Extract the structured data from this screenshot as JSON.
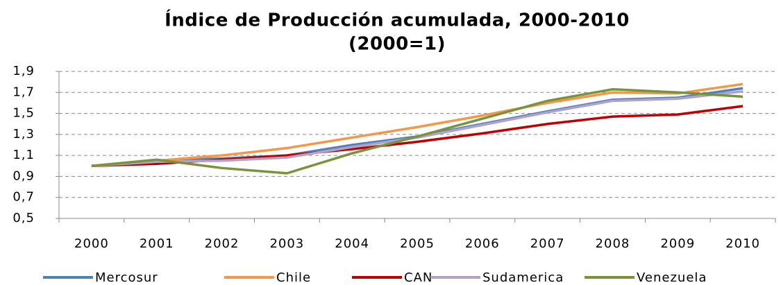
{
  "chart_data": {
    "type": "line",
    "title": "Índice de Producción acumulada, 2000-2010",
    "subtitle": "(2000=1)",
    "categories": [
      "2000",
      "2001",
      "2002",
      "2003",
      "2004",
      "2005",
      "2006",
      "2007",
      "2008",
      "2009",
      "2010"
    ],
    "series": [
      {
        "name": "Mercosur",
        "color": "#4f81bd",
        "values": [
          1.0,
          1.05,
          1.07,
          1.1,
          1.2,
          1.28,
          1.4,
          1.52,
          1.63,
          1.65,
          1.74
        ]
      },
      {
        "name": "Chile",
        "color": "#f79646",
        "values": [
          1.0,
          1.05,
          1.1,
          1.17,
          1.27,
          1.37,
          1.48,
          1.6,
          1.7,
          1.69,
          1.78
        ]
      },
      {
        "name": "CAN",
        "color": "#c00000",
        "values": [
          1.0,
          1.02,
          1.06,
          1.1,
          1.16,
          1.23,
          1.31,
          1.4,
          1.47,
          1.49,
          1.57
        ]
      },
      {
        "name": "Sudamerica",
        "color": "#b3a2c7",
        "values": [
          1.0,
          1.04,
          1.05,
          1.08,
          1.18,
          1.27,
          1.39,
          1.51,
          1.62,
          1.64,
          1.71
        ]
      },
      {
        "name": "Venezuela",
        "color": "#77933c",
        "values": [
          1.0,
          1.06,
          0.98,
          0.93,
          1.12,
          1.28,
          1.45,
          1.62,
          1.73,
          1.7,
          1.66
        ]
      }
    ],
    "ylim": [
      0.5,
      1.9
    ],
    "yticks": [
      {
        "value": 0.5,
        "label": "0,5"
      },
      {
        "value": 0.7,
        "label": "0,7"
      },
      {
        "value": 0.9,
        "label": "0,9"
      },
      {
        "value": 1.1,
        "label": "1,1"
      },
      {
        "value": 1.3,
        "label": "1,3"
      },
      {
        "value": 1.5,
        "label": "1,5"
      },
      {
        "value": 1.7,
        "label": "1,7"
      },
      {
        "value": 1.9,
        "label": "1,9"
      }
    ],
    "grid": true,
    "legend": "bottom"
  }
}
